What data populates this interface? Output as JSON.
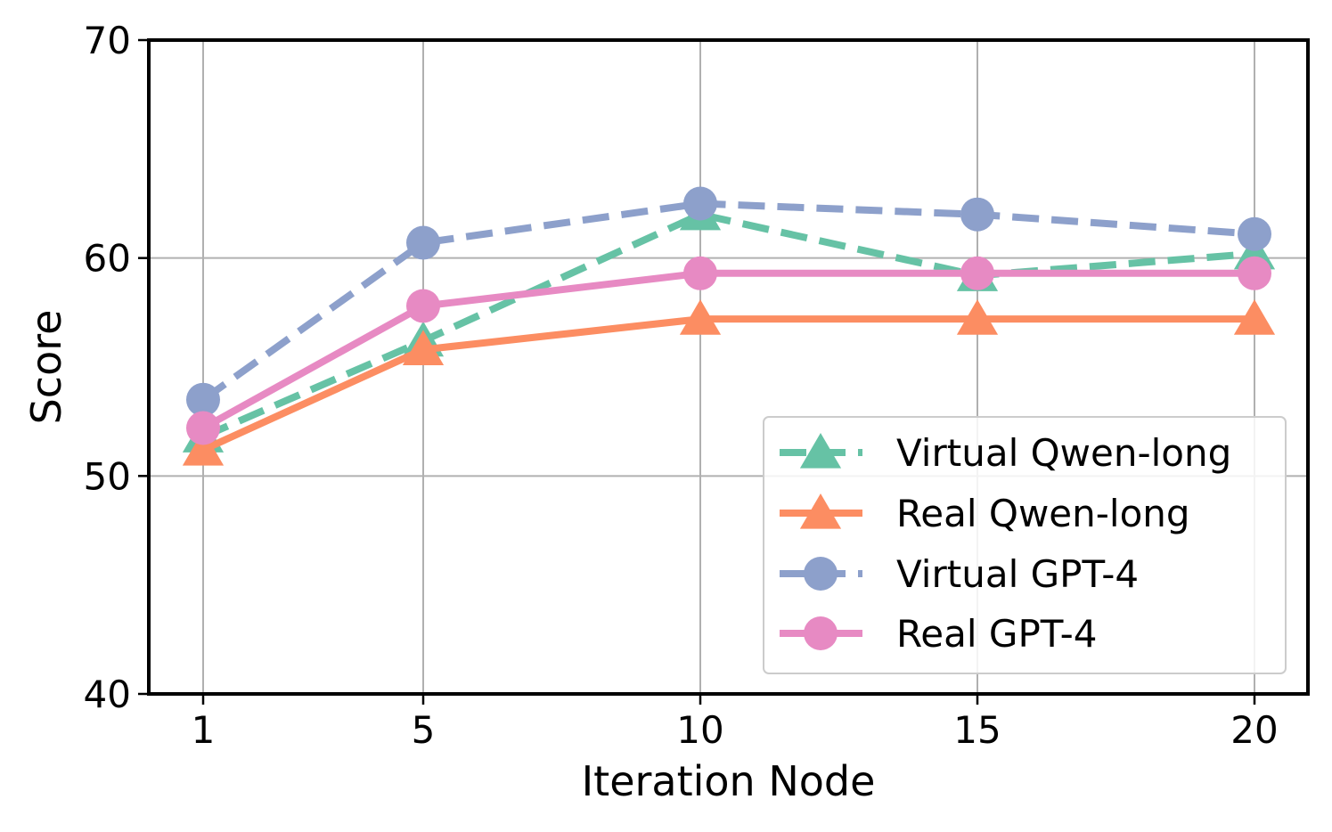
{
  "chart_data": {
    "type": "line",
    "x": [
      1,
      5,
      10,
      15,
      20
    ],
    "xlabel": "Iteration Node",
    "ylabel": "Score",
    "ylim": [
      40,
      70
    ],
    "yticks": [
      40,
      50,
      60,
      70
    ],
    "xtick_labels": [
      "1",
      "5",
      "10",
      "15",
      "20"
    ],
    "ytick_labels": [
      "40",
      "50",
      "60",
      "70"
    ],
    "grid": true,
    "legend_position": "lower-right",
    "series": [
      {
        "name": "Virtual Qwen-long",
        "values": [
          51.8,
          56.2,
          62.0,
          59.2,
          60.2
        ],
        "color": "#66c2a5",
        "marker": "triangle",
        "dashed": true
      },
      {
        "name": "Real Qwen-long",
        "values": [
          51.2,
          55.8,
          57.2,
          57.2,
          57.2
        ],
        "color": "#fc8d62",
        "marker": "triangle",
        "dashed": false
      },
      {
        "name": "Virtual GPT-4",
        "values": [
          53.5,
          60.7,
          62.5,
          62.0,
          61.1
        ],
        "color": "#8da0cb",
        "marker": "circle",
        "dashed": true
      },
      {
        "name": "Real GPT-4",
        "values": [
          52.2,
          57.8,
          59.3,
          59.3,
          59.3
        ],
        "color": "#e78ac3",
        "marker": "circle",
        "dashed": false
      }
    ]
  }
}
